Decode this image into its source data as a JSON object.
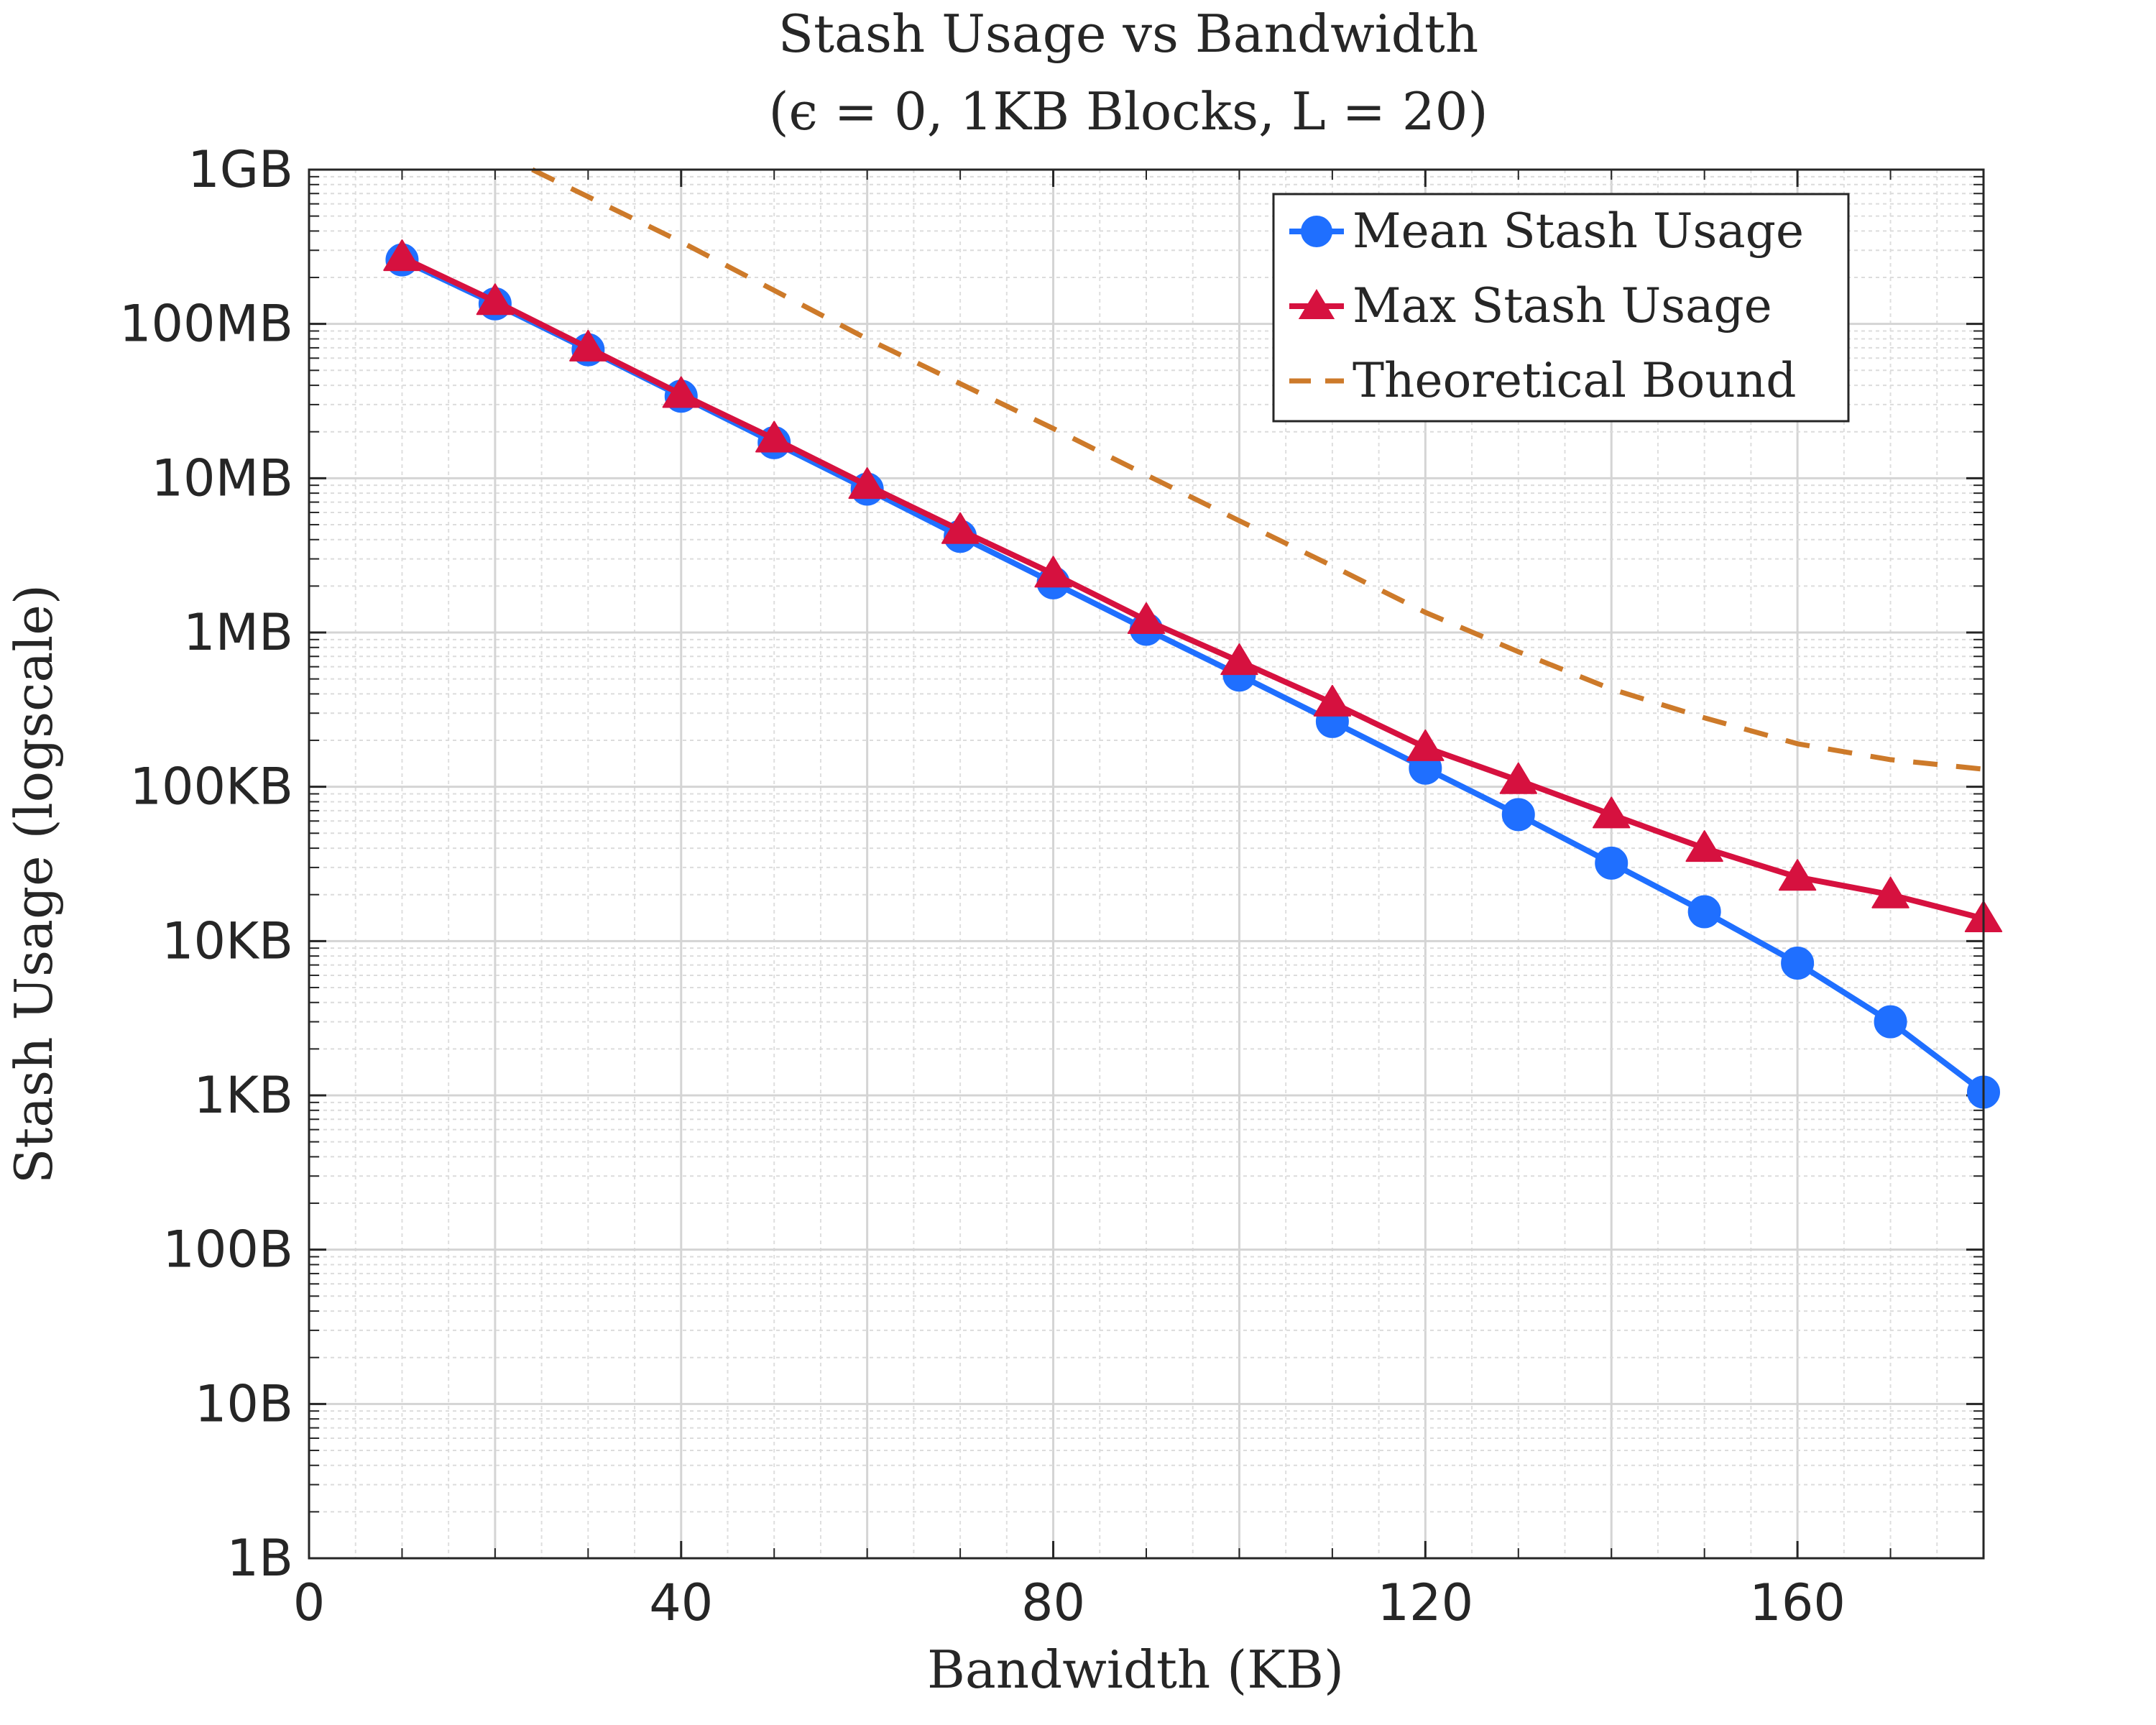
{
  "chart_data": {
    "type": "line",
    "title": "Stash Usage vs Bandwidth",
    "subtitle": "(ϵ = 0, 1KB Blocks, L = 20)",
    "xlabel": "Bandwidth (KB)",
    "ylabel": "Stash Usage (logscale)",
    "xlim": [
      0,
      180
    ],
    "ylim_log10_bytes": [
      0,
      9
    ],
    "yscale": "log",
    "grid": true,
    "legend_position": "top-right",
    "x_ticks": [
      0,
      40,
      80,
      120,
      160
    ],
    "y_ticks": [
      {
        "value": 1,
        "label": "1B"
      },
      {
        "value": 10,
        "label": "10B"
      },
      {
        "value": 100,
        "label": "100B"
      },
      {
        "value": 1000,
        "label": "1KB"
      },
      {
        "value": 10000,
        "label": "10KB"
      },
      {
        "value": 100000,
        "label": "100KB"
      },
      {
        "value": 1000000,
        "label": "1MB"
      },
      {
        "value": 10000000,
        "label": "10MB"
      },
      {
        "value": 100000000,
        "label": "100MB"
      },
      {
        "value": 1000000000,
        "label": "1GB"
      }
    ],
    "series": [
      {
        "name": "Mean Stash Usage",
        "color": "#1f6fff",
        "marker": "circle",
        "line_style": "solid",
        "x": [
          10,
          20,
          30,
          40,
          50,
          60,
          70,
          80,
          90,
          100,
          110,
          120,
          130,
          140,
          150,
          160,
          170,
          180
        ],
        "values": [
          260000000,
          135000000,
          68000000,
          34000000,
          17000000,
          8500000,
          4200000,
          2100000,
          1050000,
          530000,
          265000,
          132000,
          66000,
          32000,
          15500,
          7200,
          3000,
          1050
        ]
      },
      {
        "name": "Max Stash Usage",
        "color": "#d6113f",
        "marker": "triangle",
        "line_style": "solid",
        "x": [
          10,
          20,
          30,
          40,
          50,
          60,
          70,
          80,
          90,
          100,
          110,
          120,
          130,
          140,
          150,
          160,
          170,
          180
        ],
        "values": [
          270000000,
          140000000,
          70000000,
          35000000,
          18000000,
          9000000,
          4600000,
          2400000,
          1200000,
          650000,
          350000,
          180000,
          110000,
          66000,
          40000,
          26000,
          20000,
          14000
        ]
      },
      {
        "name": "Theoretical Bound",
        "color": "#cd7a2a",
        "marker": "none",
        "line_style": "dashed",
        "x": [
          24,
          40,
          60,
          80,
          90,
          100,
          110,
          120,
          130,
          140,
          150,
          160,
          170,
          180
        ],
        "values": [
          1000000000,
          340000000,
          80000000,
          21000000,
          10500000,
          5300000,
          2700000,
          1350000,
          750000,
          430000,
          280000,
          190000,
          150000,
          130000
        ]
      }
    ]
  }
}
